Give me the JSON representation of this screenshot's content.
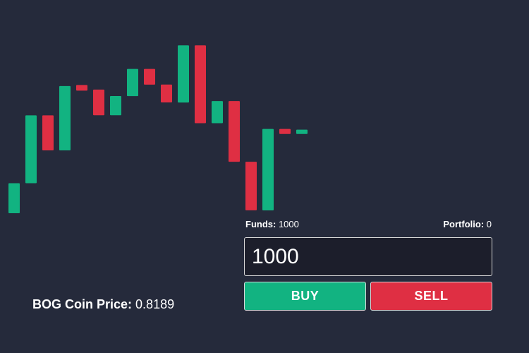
{
  "colors": {
    "background": "#252a3b",
    "up": "#12b381",
    "down": "#df2f43",
    "input_bg": "#1c1e2b"
  },
  "chart_data": {
    "type": "candlestick",
    "candles": [
      {
        "open": 0.0,
        "close": 0.42
      },
      {
        "open": 0.42,
        "close": 1.37
      },
      {
        "open": 1.37,
        "close": 0.88
      },
      {
        "open": 0.88,
        "close": 1.78
      },
      {
        "open": 1.78,
        "close": 1.73
      },
      {
        "open": 1.73,
        "close": 1.37
      },
      {
        "open": 1.37,
        "close": 1.64
      },
      {
        "open": 1.64,
        "close": 2.02
      },
      {
        "open": 2.02,
        "close": 1.8
      },
      {
        "open": 1.8,
        "close": 1.55
      },
      {
        "open": 1.55,
        "close": 2.35
      },
      {
        "open": 2.35,
        "close": 1.26
      },
      {
        "open": 1.26,
        "close": 1.57
      },
      {
        "open": 1.57,
        "close": 0.72
      },
      {
        "open": 0.72,
        "close": 0.04
      },
      {
        "open": 0.04,
        "close": 1.18
      },
      {
        "open": 1.18,
        "close": 1.11
      },
      {
        "open": 1.11,
        "close": 1.17
      }
    ],
    "ylim": [
      0,
      2.5
    ]
  },
  "trade": {
    "funds_label": "Funds:",
    "funds_value": "1000",
    "portfolio_label": "Portfolio:",
    "portfolio_value": "0",
    "amount": "1000",
    "buy_label": "BUY",
    "sell_label": "SELL"
  },
  "price": {
    "label": "BOG Coin Price:",
    "value": "0.8189"
  }
}
